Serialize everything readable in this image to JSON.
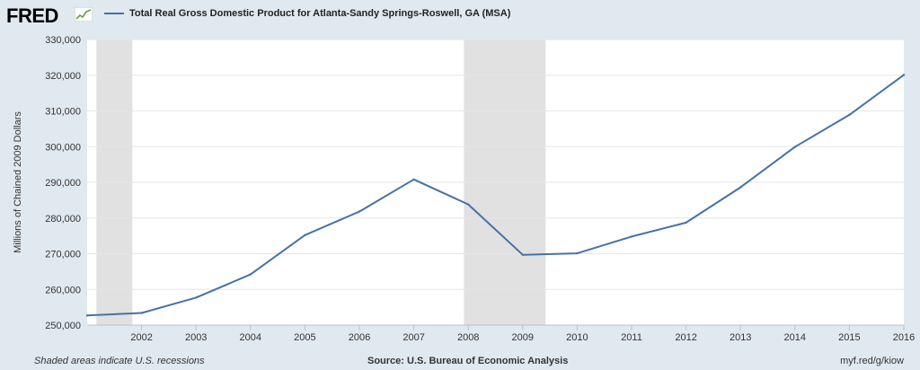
{
  "header": {
    "logo_text": "FRED",
    "legend_label": "Total Real Gross Domestic Product for Atlanta-Sandy Springs-Roswell, GA (MSA)"
  },
  "footer": {
    "note": "Shaded areas indicate U.S. recessions",
    "source": "Source: U.S. Bureau of Economic Analysis",
    "url": "myf.red/g/kiow"
  },
  "colors": {
    "series": "#4572a7",
    "recession": "#e1e1e1",
    "plot_bg": "#ffffff",
    "page_bg": "#e1e9f0"
  },
  "chart_data": {
    "type": "line",
    "ylabel": "Millions of Chained 2009 Dollars",
    "ylim": [
      250000,
      330000
    ],
    "yticks": [
      250000,
      260000,
      270000,
      280000,
      290000,
      300000,
      310000,
      320000,
      330000
    ],
    "ytick_labels": [
      "250,000",
      "260,000",
      "270,000",
      "280,000",
      "290,000",
      "300,000",
      "310,000",
      "320,000",
      "330,000"
    ],
    "xlim": [
      2001,
      2016
    ],
    "xticks": [
      2002,
      2003,
      2004,
      2005,
      2006,
      2007,
      2008,
      2009,
      2010,
      2011,
      2012,
      2013,
      2014,
      2015,
      2016
    ],
    "xtick_labels": [
      "2002",
      "2003",
      "2004",
      "2005",
      "2006",
      "2007",
      "2008",
      "2009",
      "2010",
      "2011",
      "2012",
      "2013",
      "2014",
      "2015",
      "2016"
    ],
    "grid": true,
    "recessions": [
      [
        2001.17,
        2001.83
      ],
      [
        2007.92,
        2009.42
      ]
    ],
    "series": [
      {
        "x": [
          2001,
          2002,
          2003,
          2004,
          2005,
          2006,
          2007,
          2008,
          2009,
          2010,
          2011,
          2012,
          2013,
          2014,
          2015,
          2016
        ],
        "values": [
          252700,
          253400,
          257700,
          264200,
          275200,
          281800,
          290800,
          283800,
          269700,
          270100,
          274800,
          278700,
          288600,
          299900,
          308900,
          320100
        ]
      }
    ]
  }
}
